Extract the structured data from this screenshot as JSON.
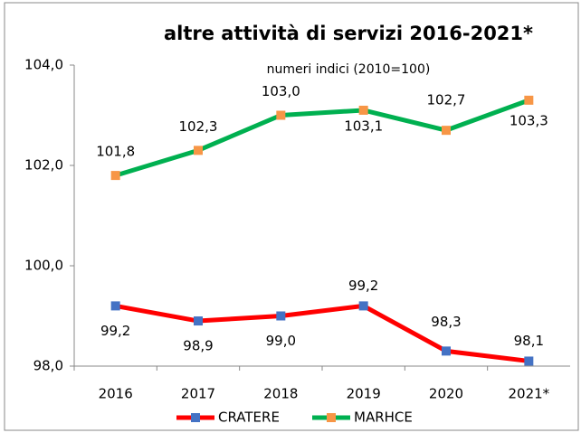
{
  "chart_data": {
    "type": "line",
    "title": "altre attività di servizi 2016-2021*",
    "annotation": "numeri indici (2010=100)",
    "categories": [
      "2016",
      "2017",
      "2018",
      "2019",
      "2020",
      "2021*"
    ],
    "series": [
      {
        "name": "CRATERE",
        "color": "#ff0000",
        "marker_color": "#4472c4",
        "values": [
          99.2,
          98.9,
          99.0,
          99.2,
          98.3,
          98.1
        ],
        "value_labels": [
          "99,2",
          "98,9",
          "99,0",
          "99,2",
          "98,3",
          "98,1"
        ]
      },
      {
        "name": "MARHCE",
        "color": "#00b050",
        "marker_color": "#f79646",
        "values": [
          101.8,
          102.3,
          103.0,
          103.1,
          102.7,
          103.3
        ],
        "value_labels": [
          "101,8",
          "102,3",
          "103,0",
          "103,1",
          "102,7",
          "103,3"
        ]
      }
    ],
    "ylim": [
      98,
      104
    ],
    "yticks": [
      {
        "value": 98,
        "label": "98,0"
      },
      {
        "value": 100,
        "label": "100,0"
      },
      {
        "value": 102,
        "label": "102,0"
      },
      {
        "value": 104,
        "label": "104,0"
      }
    ],
    "grid": false,
    "legend": "bottom"
  }
}
